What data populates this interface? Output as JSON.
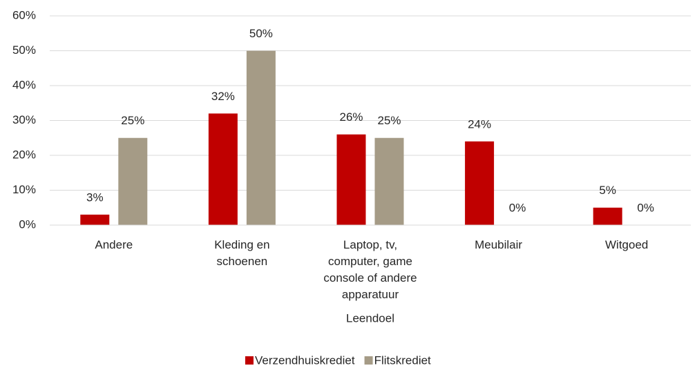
{
  "chart_data": {
    "type": "bar",
    "x_label": "Leendoel",
    "categories": [
      "Andere",
      "Kleding en schoenen",
      "Laptop, tv, computer, game console of andere apparatuur",
      "Meubilair",
      "Witgoed"
    ],
    "series": [
      {
        "name": "Verzendhuiskrediet",
        "color": "#c00000",
        "values": [
          3,
          32,
          26,
          24,
          5
        ],
        "value_labels": [
          "3%",
          "32%",
          "26%",
          "24%",
          "5%"
        ]
      },
      {
        "name": "Flitskrediet",
        "color": "#a59b86",
        "values": [
          25,
          50,
          25,
          0,
          0
        ],
        "value_labels": [
          "25%",
          "50%",
          "25%",
          "0%",
          "0%"
        ]
      }
    ],
    "ylim": [
      0,
      60
    ],
    "yticks": [
      {
        "value": 0,
        "label": "0%"
      },
      {
        "value": 10,
        "label": "10%"
      },
      {
        "value": 20,
        "label": "20%"
      },
      {
        "value": 30,
        "label": "30%"
      },
      {
        "value": 40,
        "label": "40%"
      },
      {
        "value": 50,
        "label": "50%"
      },
      {
        "value": 60,
        "label": "60%"
      }
    ],
    "grid": true,
    "legend": "bottom"
  }
}
